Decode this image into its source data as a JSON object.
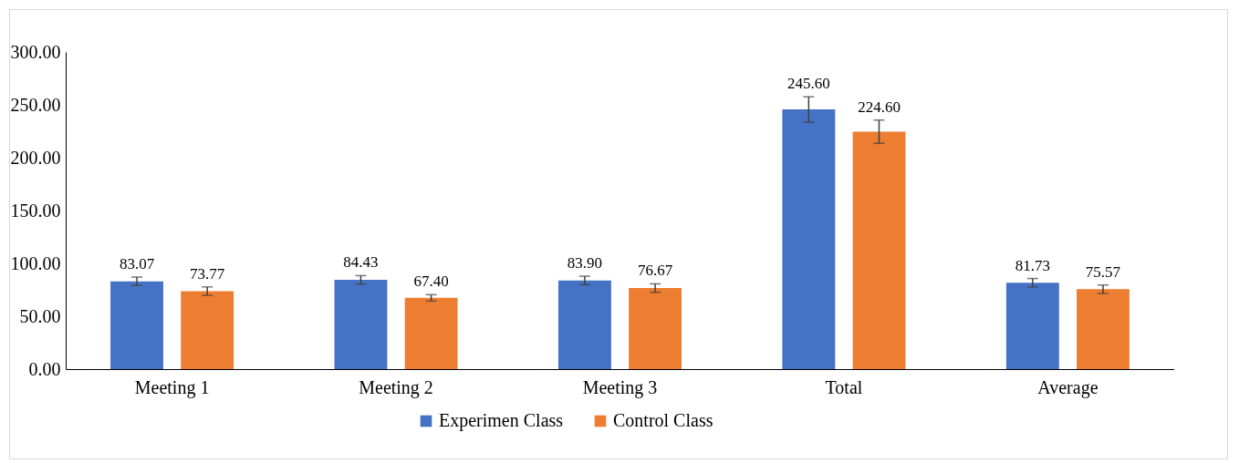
{
  "chart_data": {
    "type": "bar",
    "categories": [
      "Meeting 1",
      "Meeting 2",
      "Meeting 3",
      "Total",
      "Average"
    ],
    "series": [
      {
        "name": "Experimen Class",
        "color": "#4472c4",
        "values": [
          83.07,
          84.43,
          83.9,
          245.6,
          81.73
        ],
        "value_labels": [
          "83.07",
          "84.43",
          "83.90",
          "245.60",
          "81.73"
        ],
        "errors": [
          4,
          4,
          4,
          12,
          4
        ]
      },
      {
        "name": "Control Class",
        "color": "#ed7d31",
        "values": [
          73.77,
          67.4,
          76.67,
          224.6,
          75.57
        ],
        "value_labels": [
          "73.77",
          "67.40",
          "76.67",
          "224.60",
          "75.57"
        ],
        "errors": [
          4,
          3,
          4,
          11,
          4
        ]
      }
    ],
    "ylim": [
      0,
      300
    ],
    "yticks": [
      {
        "value": 0,
        "label": "0.00"
      },
      {
        "value": 50,
        "label": "50.00"
      },
      {
        "value": 100,
        "label": "100.00"
      },
      {
        "value": 150,
        "label": "150.00"
      },
      {
        "value": 200,
        "label": "200.00"
      },
      {
        "value": 250,
        "label": "250.00"
      },
      {
        "value": 300,
        "label": "300.00"
      }
    ],
    "grid": false,
    "legend": "bottom"
  }
}
